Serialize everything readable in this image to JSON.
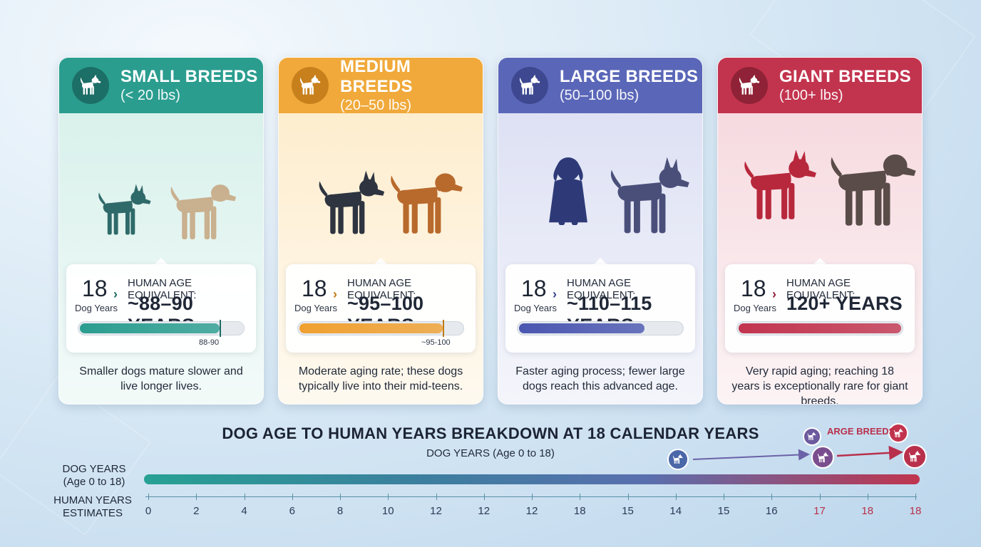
{
  "cards": [
    {
      "key": "small",
      "title": "SMALL BREEDS",
      "subtitle": "(< 20 lbs)",
      "dog_years": "18",
      "dog_years_label": "Dog Years",
      "hae_label": "HUMAN AGE EQUIVALENT:",
      "hae_value": "~88–90 YEARS",
      "bar_caption": "88-90",
      "bar_fraction": 0.86,
      "description": "Smaller dogs mature slower and live longer lives.",
      "colors": {
        "header": "#2a9d8f",
        "body": "#d4efe9",
        "badge": "#1c6f66",
        "fill": "#2a9d8f",
        "accent": "#1d6b63"
      },
      "dog_icons": [
        "chihuahua-icon",
        "pug-icon"
      ]
    },
    {
      "key": "medium",
      "title": "MEDIUM BREEDS",
      "subtitle": "(20–50 lbs)",
      "dog_years": "18",
      "dog_years_label": "Dog Years",
      "hae_label": "HUMAN AGE EQUIVALENT:",
      "hae_value": "~95–100 YEARS",
      "bar_caption": "~95-100",
      "bar_fraction": 0.88,
      "description": "Moderate aging rate; these dogs typically live into their mid-teens.",
      "colors": {
        "header": "#f0a93a",
        "body": "#fdebc8",
        "badge": "#c8801c",
        "fill": "#f0a030",
        "accent": "#c07a14"
      },
      "dog_icons": [
        "french-bulldog-icon",
        "beagle-icon"
      ]
    },
    {
      "key": "large",
      "title": "LARGE BREEDS",
      "subtitle": "(50–100 lbs)",
      "dog_years": "18",
      "dog_years_label": "Dog Years",
      "hae_label": "HUMAN AGE EQUIVALENT:",
      "hae_value": "~110–115 YEARS",
      "bar_caption": "",
      "bar_fraction": 0.77,
      "description": "Faster aging process; fewer large dogs reach this advanced age.",
      "colors": {
        "header": "#5a67b8",
        "body": "#d9ddf2",
        "badge": "#3d4890",
        "fill": "#4a56b0",
        "accent": "#3d4890"
      },
      "dog_icons": [
        "labrador-icon",
        "german-shepherd-icon"
      ]
    },
    {
      "key": "giant",
      "title": "GIANT BREEDS",
      "subtitle": "(100+ lbs)",
      "dog_years": "18",
      "dog_years_label": "Dog Years",
      "hae_label": "HUMAN AGE EQUIVALENT:",
      "hae_value": "120+ YEARS",
      "bar_caption": "",
      "bar_fraction": 1.0,
      "description": "Very rapid aging; reaching 18 years is exceptionally rare for giant breeds.",
      "colors": {
        "header": "#c2344e",
        "body": "#f5d6dc",
        "badge": "#8f2236",
        "fill": "#c2344e",
        "accent": "#8f2236"
      },
      "dog_icons": [
        "great-dane-icon",
        "irish-wolfhound-icon"
      ]
    }
  ],
  "timeline": {
    "title": "DOG AGE TO HUMAN YEARS BREAKDOWN AT 18 CALENDAR YEARS",
    "subtitle": "DOG YEARS (Age 0 to 18)",
    "dog_years_label": "DOG YEARS\n(Age 0 to 18)",
    "human_years_label": "HUMAN YEARS\nESTIMATES",
    "ticks": [
      "0",
      "2",
      "4",
      "6",
      "8",
      "10",
      "12",
      "12",
      "12",
      "18",
      "15",
      "14",
      "15",
      "16",
      "17",
      "18",
      "18"
    ],
    "large_breeds_label": "ARGE BREEDS"
  }
}
